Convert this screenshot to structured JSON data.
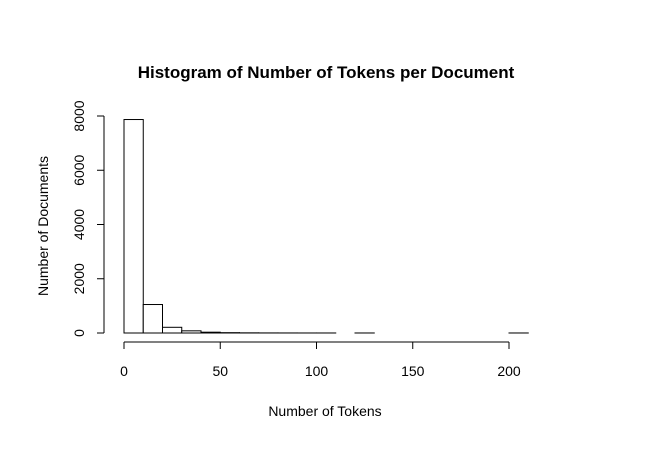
{
  "chart_data": {
    "type": "bar",
    "title": "Histogram of Number of Tokens per Document",
    "xlabel": "Number of Tokens",
    "ylabel": "Number of Documents",
    "bins": [
      {
        "from": 0,
        "to": 10,
        "count": 7870
      },
      {
        "from": 10,
        "to": 20,
        "count": 1050
      },
      {
        "from": 20,
        "to": 30,
        "count": 210
      },
      {
        "from": 30,
        "to": 40,
        "count": 80
      },
      {
        "from": 40,
        "to": 50,
        "count": 30
      },
      {
        "from": 50,
        "to": 60,
        "count": 12
      },
      {
        "from": 60,
        "to": 70,
        "count": 6
      },
      {
        "from": 70,
        "to": 80,
        "count": 3
      },
      {
        "from": 80,
        "to": 90,
        "count": 2
      },
      {
        "from": 90,
        "to": 100,
        "count": 1
      },
      {
        "from": 100,
        "to": 110,
        "count": 1
      },
      {
        "from": 110,
        "to": 120,
        "count": 0
      },
      {
        "from": 120,
        "to": 130,
        "count": 1
      },
      {
        "from": 130,
        "to": 140,
        "count": 0
      },
      {
        "from": 140,
        "to": 150,
        "count": 0
      },
      {
        "from": 150,
        "to": 160,
        "count": 0
      },
      {
        "from": 160,
        "to": 170,
        "count": 0
      },
      {
        "from": 170,
        "to": 180,
        "count": 0
      },
      {
        "from": 180,
        "to": 190,
        "count": 0
      },
      {
        "from": 190,
        "to": 200,
        "count": 0
      },
      {
        "from": 200,
        "to": 210,
        "count": 1
      }
    ],
    "xlim": [
      0,
      210
    ],
    "ylim": [
      0,
      8000
    ],
    "x_ticks": [
      0,
      50,
      100,
      150,
      200
    ],
    "y_ticks": [
      0,
      2000,
      4000,
      6000,
      8000
    ],
    "grid": false,
    "bar_fill": "#ffffff",
    "bar_stroke": "#000000"
  }
}
